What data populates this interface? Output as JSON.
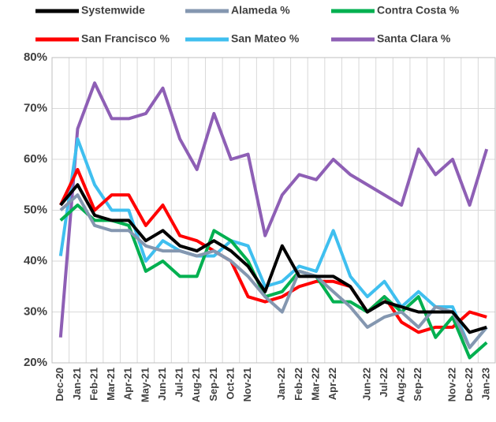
{
  "chart_data": {
    "type": "line",
    "categories": [
      "Dec-20",
      "Jan-21",
      "Feb-21",
      "Mar-21",
      "Apr-21",
      "May-21",
      "Jun-21",
      "Jul-21",
      "Aug-21",
      "Sep-21",
      "Oct-21",
      "Nov-21",
      null,
      "Jan-22",
      "Feb-22",
      "Mar-22",
      "Apr-22",
      null,
      "Jun-22",
      "Jul-22",
      "Aug-22",
      "Sep-22",
      null,
      "Nov-22",
      "Dec-22",
      "Jan-23"
    ],
    "series": [
      {
        "name": "Systemwide",
        "color": "#000000",
        "values": [
          51,
          55,
          49,
          48,
          48,
          44,
          46,
          43,
          42,
          44,
          42,
          39,
          34,
          43,
          37,
          37,
          37,
          35,
          30,
          32,
          31,
          30,
          30,
          30,
          26,
          27
        ]
      },
      {
        "name": "Alameda %",
        "color": "#8497b0",
        "values": [
          50,
          53,
          47,
          46,
          46,
          43,
          42,
          42,
          41,
          42,
          40,
          37,
          33,
          30,
          38,
          37,
          34,
          31,
          27,
          29,
          30,
          27,
          31,
          30,
          23,
          27
        ]
      },
      {
        "name": "Contra Costa %",
        "color": "#00b050",
        "values": [
          48,
          51,
          48,
          48,
          47,
          38,
          40,
          37,
          37,
          46,
          44,
          40,
          33,
          34,
          38,
          37,
          32,
          32,
          30,
          33,
          30,
          33,
          25,
          29,
          21,
          24
        ]
      },
      {
        "name": "San Francisco %",
        "color": "#ff0000",
        "values": [
          51,
          58,
          50,
          53,
          53,
          47,
          51,
          45,
          44,
          42,
          40,
          33,
          32,
          33,
          35,
          36,
          36,
          35,
          30,
          33,
          28,
          26,
          27,
          27,
          30,
          29
        ]
      },
      {
        "name": "San Mateo %",
        "color": "#3fbfef",
        "values": [
          41,
          64,
          55,
          50,
          50,
          40,
          44,
          42,
          41,
          41,
          44,
          43,
          35,
          36,
          39,
          38,
          46,
          37,
          33,
          36,
          31,
          34,
          31,
          31,
          23,
          27
        ]
      },
      {
        "name": "Santa Clara %",
        "color": "#8e5fb5",
        "values": [
          25,
          66,
          75,
          68,
          68,
          69,
          74,
          64,
          58,
          69,
          60,
          61,
          45,
          53,
          57,
          56,
          60,
          57,
          55,
          53,
          51,
          62,
          57,
          60,
          51,
          62
        ]
      }
    ],
    "ylim": [
      20,
      80
    ],
    "yticks": [
      {
        "value": 20,
        "label": "20%"
      },
      {
        "value": 30,
        "label": "30%"
      },
      {
        "value": 40,
        "label": "40%"
      },
      {
        "value": 50,
        "label": "50%"
      },
      {
        "value": 60,
        "label": "60%"
      },
      {
        "value": 70,
        "label": "70%"
      },
      {
        "value": 80,
        "label": "80%"
      }
    ],
    "grid": true,
    "legend": "top"
  }
}
